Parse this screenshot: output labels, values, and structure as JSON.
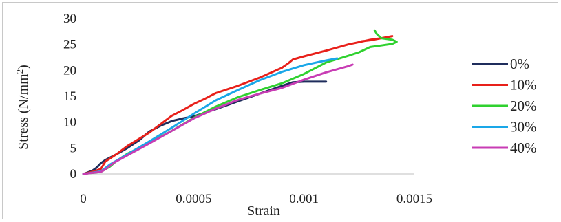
{
  "chart_data": {
    "type": "line",
    "title": "",
    "xlabel": "Strain",
    "ylabel_main": "Stress (N/mm",
    "ylabel_sup": "2",
    "ylabel_close": ")",
    "xlim": [
      0,
      0.0015
    ],
    "ylim": [
      0,
      30
    ],
    "x_ticks": [
      0,
      0.0005,
      0.001,
      0.0015
    ],
    "x_tick_labels": [
      "0",
      "0.0005",
      "0.001",
      "0.0015"
    ],
    "y_ticks": [
      0,
      5,
      10,
      15,
      20,
      25,
      30
    ],
    "y_tick_labels": [
      "0",
      "5",
      "10",
      "15",
      "20",
      "25",
      "30"
    ],
    "grid": false,
    "legend_position": "right",
    "series": [
      {
        "name": "0%",
        "color": "#1f2d5c",
        "points": [
          [
            0,
            0
          ],
          [
            4e-05,
            0.6
          ],
          [
            6e-05,
            1.2
          ],
          [
            8e-05,
            2.1
          ],
          [
            0.0001,
            2.7
          ],
          [
            0.00015,
            3.8
          ],
          [
            0.0002,
            5.0
          ],
          [
            0.00025,
            6.4
          ],
          [
            0.0003,
            8.2
          ],
          [
            0.00035,
            9.3
          ],
          [
            0.0004,
            10.2
          ],
          [
            0.00045,
            10.7
          ],
          [
            0.0005,
            11.1
          ],
          [
            0.0006,
            12.5
          ],
          [
            0.0007,
            14.0
          ],
          [
            0.0008,
            15.5
          ],
          [
            0.0009,
            17.0
          ],
          [
            0.00095,
            17.7
          ],
          [
            0.001,
            17.8
          ],
          [
            0.0011,
            17.8
          ]
        ]
      },
      {
        "name": "10%",
        "color": "#e8201a",
        "points": [
          [
            0,
            0
          ],
          [
            5e-05,
            0.5
          ],
          [
            8e-05,
            1.0
          ],
          [
            0.0001,
            2.4
          ],
          [
            0.00015,
            3.8
          ],
          [
            0.0002,
            5.4
          ],
          [
            0.00025,
            6.7
          ],
          [
            0.0003,
            8.0
          ],
          [
            0.00035,
            9.6
          ],
          [
            0.0004,
            11.2
          ],
          [
            0.00045,
            12.3
          ],
          [
            0.0005,
            13.5
          ],
          [
            0.00055,
            14.5
          ],
          [
            0.0006,
            15.6
          ],
          [
            0.0007,
            17.0
          ],
          [
            0.0008,
            18.6
          ],
          [
            0.0009,
            20.5
          ],
          [
            0.00093,
            21.4
          ],
          [
            0.00095,
            22.1
          ],
          [
            0.001,
            22.7
          ],
          [
            0.0011,
            23.8
          ],
          [
            0.0012,
            25.0
          ],
          [
            0.0013,
            25.9
          ],
          [
            0.00135,
            26.2
          ],
          [
            0.0014,
            26.6
          ],
          [
            0.0013,
            25.8
          ],
          [
            0.00126,
            25.6
          ]
        ]
      },
      {
        "name": "20%",
        "color": "#2fd12f",
        "points": [
          [
            0,
            0
          ],
          [
            8e-05,
            0.4
          ],
          [
            0.00012,
            1.4
          ],
          [
            0.00015,
            2.5
          ],
          [
            0.0002,
            3.9
          ],
          [
            0.0003,
            6.0
          ],
          [
            0.0004,
            8.3
          ],
          [
            0.0005,
            10.8
          ],
          [
            0.0006,
            13.0
          ],
          [
            0.0007,
            14.8
          ],
          [
            0.0008,
            16.2
          ],
          [
            0.0009,
            17.5
          ],
          [
            0.001,
            19.3
          ],
          [
            0.0011,
            21.5
          ],
          [
            0.0012,
            22.8
          ],
          [
            0.00125,
            23.5
          ],
          [
            0.0013,
            24.5
          ],
          [
            0.00135,
            24.8
          ],
          [
            0.0014,
            25.1
          ],
          [
            0.00142,
            25.5
          ],
          [
            0.0014,
            25.9
          ],
          [
            0.00135,
            26.2
          ],
          [
            0.00133,
            27.0
          ],
          [
            0.00132,
            27.7
          ]
        ]
      },
      {
        "name": "30%",
        "color": "#1aa7e8",
        "points": [
          [
            0,
            0
          ],
          [
            8e-05,
            0.5
          ],
          [
            0.00012,
            1.8
          ],
          [
            0.0002,
            3.8
          ],
          [
            0.0003,
            6.3
          ],
          [
            0.0004,
            8.9
          ],
          [
            0.0005,
            11.6
          ],
          [
            0.0006,
            14.2
          ],
          [
            0.0007,
            16.2
          ],
          [
            0.0008,
            18.1
          ],
          [
            0.0009,
            19.7
          ],
          [
            0.001,
            21.0
          ],
          [
            0.0011,
            21.9
          ],
          [
            0.00115,
            22.3
          ]
        ]
      },
      {
        "name": "40%",
        "color": "#c83cb4",
        "points": [
          [
            0,
            0
          ],
          [
            8e-05,
            0.4
          ],
          [
            0.0001,
            0.9
          ],
          [
            0.00014,
            2.2
          ],
          [
            0.0002,
            3.6
          ],
          [
            0.0003,
            5.9
          ],
          [
            0.0004,
            8.3
          ],
          [
            0.0005,
            10.7
          ],
          [
            0.0006,
            12.6
          ],
          [
            0.0007,
            14.3
          ],
          [
            0.0008,
            15.5
          ],
          [
            0.0009,
            16.6
          ],
          [
            0.001,
            18.2
          ],
          [
            0.0011,
            19.6
          ],
          [
            0.0012,
            20.8
          ],
          [
            0.00122,
            21.1
          ]
        ]
      }
    ]
  }
}
